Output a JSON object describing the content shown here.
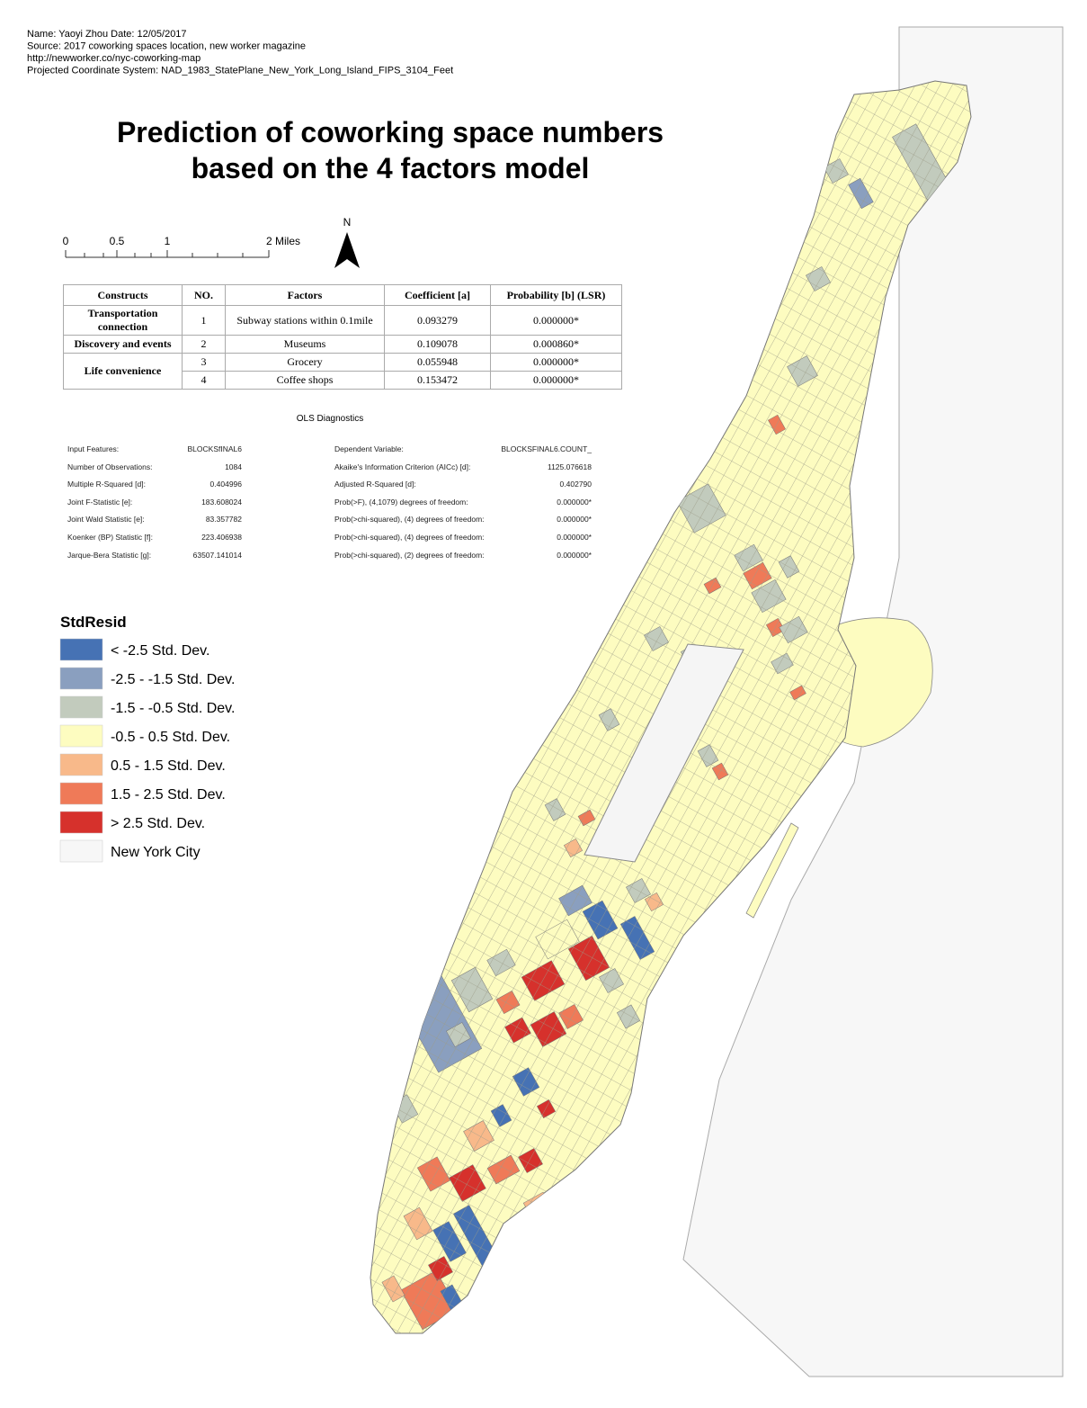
{
  "header": {
    "lines": [
      "Name: Yaoyi Zhou  Date: 12/05/2017",
      "Source: 2017 coworking spaces location, new worker magazine",
      "http://newworker.co/nyc-coworking-map",
      "Projected Coordinate System:   NAD_1983_StatePlane_New_York_Long_Island_FIPS_3104_Feet"
    ]
  },
  "title": [
    "Prediction of coworking space numbers",
    "based on the 4 factors model"
  ],
  "scale": {
    "labels": [
      "0",
      "0.5",
      "1",
      "2 Miles"
    ],
    "north": "N"
  },
  "table": {
    "headers": [
      "Constructs",
      "NO.",
      "Factors",
      "Coefficient [a]",
      "Probability [b] (LSR)"
    ],
    "groups": [
      {
        "name": "Transportation connection",
        "rows": [
          [
            "1",
            "Subway stations within 0.1mile",
            "0.093279",
            "0.000000*"
          ]
        ]
      },
      {
        "name": "Discovery and events",
        "rows": [
          [
            "2",
            "Museums",
            "0.109078",
            "0.000860*"
          ]
        ]
      },
      {
        "name": "Life convenience",
        "rows": [
          [
            "3",
            "Grocery",
            "0.055948",
            "0.000000*"
          ],
          [
            "4",
            "Coffee shops",
            "0.153472",
            "0.000000*"
          ]
        ]
      }
    ]
  },
  "ols": {
    "title": "OLS Diagnostics",
    "left": [
      [
        "Input Features:",
        "BLOCKSfINAL6"
      ],
      [
        "Number of Observations:",
        "1084"
      ],
      [
        "Multiple R-Squared [d]:",
        "0.404996"
      ],
      [
        "Joint F-Statistic [e]:",
        "183.608024"
      ],
      [
        "Joint Wald Statistic [e]:",
        "83.357782"
      ],
      [
        "Koenker (BP) Statistic [f]:",
        "223.406938"
      ],
      [
        "Jarque-Bera Statistic [g]:",
        "63507.141014"
      ]
    ],
    "right": [
      [
        "Dependent Variable:",
        "BLOCKSFINAL6.COUNT_"
      ],
      [
        "Akaike's Information Criterion (AICc) [d]:",
        "1125.076618"
      ],
      [
        "Adjusted R-Squared [d]:",
        "0.402790"
      ],
      [
        "Prob(>F), (4,1079) degrees of freedom:",
        "0.000000*"
      ],
      [
        "Prob(>chi-squared), (4) degrees of freedom:",
        "0.000000*"
      ],
      [
        "Prob(>chi-squared), (4) degrees of freedom:",
        "0.000000*"
      ],
      [
        "Prob(>chi-squared), (2) degrees of freedom:",
        "0.000000*"
      ]
    ]
  },
  "legend": {
    "title": "StdResid",
    "items": [
      {
        "label": "< -2.5 Std. Dev.",
        "color": "#4672b4"
      },
      {
        "label": "-2.5 - -1.5 Std. Dev.",
        "color": "#8a9fbf"
      },
      {
        "label": "-1.5 - -0.5 Std. Dev.",
        "color": "#c2cbbd"
      },
      {
        "label": "-0.5 - 0.5 Std. Dev.",
        "color": "#fdfcc0"
      },
      {
        "label": "0.5 - 1.5 Std. Dev.",
        "color": "#f8b98a"
      },
      {
        "label": "1.5 - 2.5 Std. Dev.",
        "color": "#ef7a58"
      },
      {
        "label": "> 2.5 Std. Dev.",
        "color": "#d6312c"
      },
      {
        "label": "New York City",
        "color": "#f7f7f7"
      }
    ]
  }
}
